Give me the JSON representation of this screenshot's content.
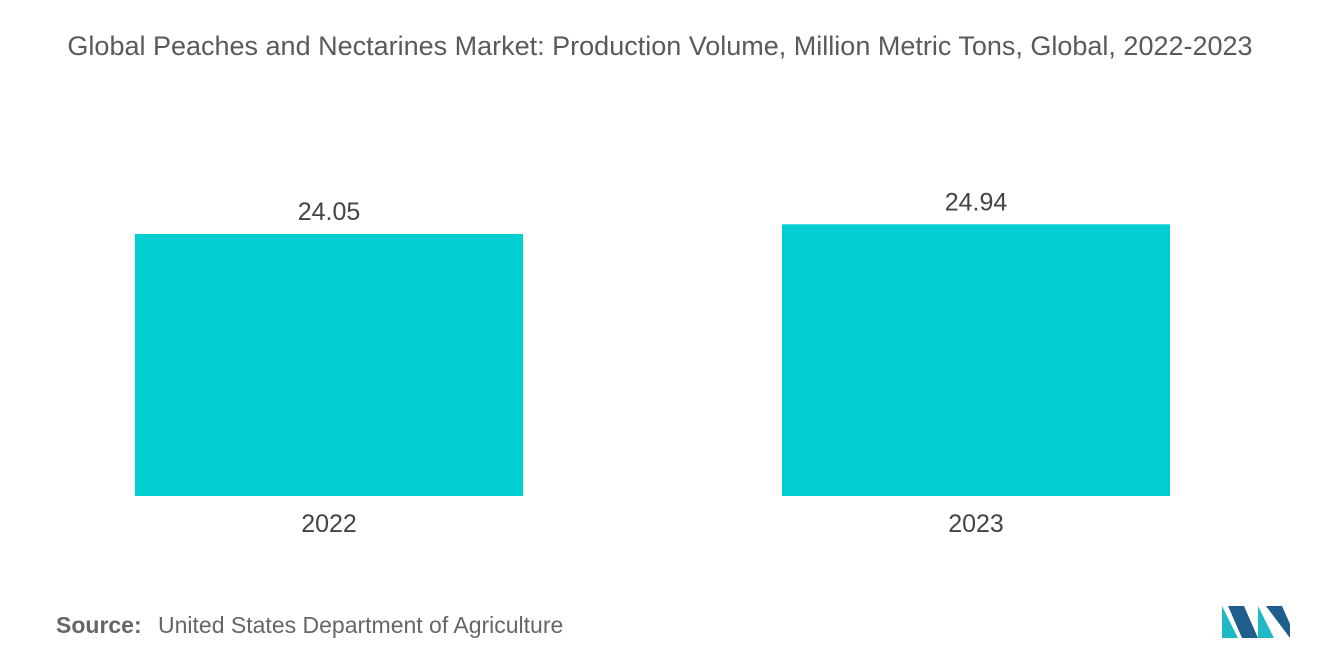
{
  "chart_data": {
    "type": "bar",
    "title": "Global Peaches and Nectarines Market: Production Volume, Million Metric Tons, Global, 2022-2023",
    "categories": [
      "2022",
      "2023"
    ],
    "values": [
      24.05,
      24.94
    ],
    "value_labels": [
      "24.05",
      "24.94"
    ],
    "xlabel": "",
    "ylabel": "",
    "ylim": [
      0,
      30
    ],
    "grid": false,
    "legend": "none",
    "bar_color": "#00CED1"
  },
  "source": {
    "label": "Source:",
    "text": "United States Department of Agriculture"
  },
  "colors": {
    "bar": "#00CED1",
    "logo_dark": "#1F5E8C",
    "logo_light": "#1FB8C6"
  },
  "logo": {
    "icon": "mordor-intelligence-logo-icon"
  }
}
